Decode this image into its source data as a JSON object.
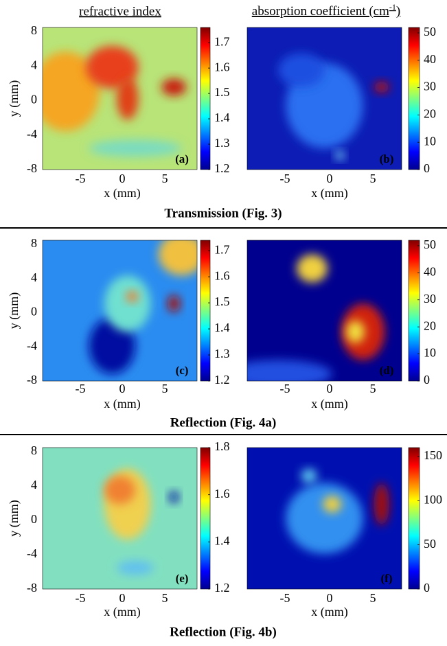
{
  "headers": {
    "left": "refractive index",
    "right": {
      "text": "absorption coefficient (cm",
      "sup": "-1",
      "tail": ")"
    }
  },
  "axes": {
    "x_label": "x (mm)",
    "y_label": "y (mm)",
    "x_ticks": [
      "-5",
      "0",
      "5"
    ],
    "y_ticks": [
      "8",
      "4",
      "0",
      "-4",
      "-8"
    ]
  },
  "rows": [
    {
      "caption": "Transmission (Fig. 3)",
      "panels": [
        {
          "label": "(a)",
          "clim": [
            1.2,
            1.76
          ],
          "ticks": [
            1.2,
            1.3,
            1.4,
            1.5,
            1.6,
            1.7
          ]
        },
        {
          "label": "(b)",
          "clim": [
            0,
            52
          ],
          "ticks": [
            0,
            10,
            20,
            30,
            40,
            50
          ]
        }
      ]
    },
    {
      "caption": "Reflection (Fig. 4a)",
      "panels": [
        {
          "label": "(c)",
          "clim": [
            1.2,
            1.74
          ],
          "ticks": [
            1.2,
            1.3,
            1.4,
            1.5,
            1.6,
            1.7
          ]
        },
        {
          "label": "(d)",
          "clim": [
            0,
            52
          ],
          "ticks": [
            0,
            10,
            20,
            30,
            40,
            50
          ]
        }
      ]
    },
    {
      "caption": "Reflection (Fig. 4b)",
      "panels": [
        {
          "label": "(e)",
          "clim": [
            1.2,
            1.8
          ],
          "ticks": [
            1.2,
            1.4,
            1.6,
            1.8
          ]
        },
        {
          "label": "(f)",
          "clim": [
            0,
            160
          ],
          "ticks": [
            0,
            50,
            100,
            150
          ]
        }
      ]
    }
  ]
}
